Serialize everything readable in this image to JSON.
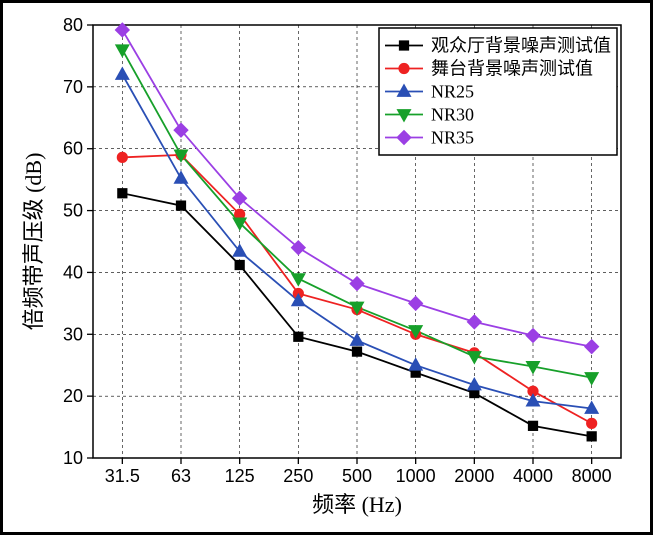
{
  "chart": {
    "type": "line",
    "background_color": "#ffffff",
    "outer_border_color": "#000000",
    "outer_border_width": 3,
    "plot": {
      "border_color": "#000000",
      "border_width": 1.5,
      "grid_color": "#000000",
      "grid_dash": "3,3",
      "grid_width": 0.6
    },
    "xlabel": "频率 (Hz)",
    "ylabel": "倍频带声压级 (dB)",
    "label_fontsize": 22,
    "tick_fontsize": 18,
    "x_categories": [
      "31.5",
      "63",
      "125",
      "250",
      "500",
      "1000",
      "2000",
      "4000",
      "8000"
    ],
    "y_min": 10,
    "y_max": 80,
    "y_tick_step": 10,
    "legend": {
      "bg": "#ffffff",
      "border": "#000000",
      "fontsize": 18
    },
    "series": [
      {
        "name": "观众厅背景噪声测试值",
        "color": "#000000",
        "marker": "square",
        "marker_fill": "#000000",
        "marker_size": 6,
        "line_width": 1.8,
        "values": [
          52.8,
          50.8,
          41.2,
          29.6,
          27.2,
          23.8,
          20.5,
          15.2,
          13.5
        ]
      },
      {
        "name": "舞台背景噪声测试值",
        "color": "#ee2222",
        "marker": "circle",
        "marker_fill": "#ee2222",
        "marker_size": 6,
        "line_width": 1.8,
        "values": [
          58.6,
          59.0,
          49.4,
          36.6,
          34.0,
          30.0,
          27.0,
          20.8,
          15.6
        ]
      },
      {
        "name": "NR25",
        "color": "#2a4fb5",
        "marker": "triangle-up",
        "marker_fill": "#2a4fb5",
        "marker_size": 7,
        "line_width": 1.8,
        "values": [
          72.0,
          55.2,
          43.4,
          35.4,
          29.0,
          25.0,
          21.8,
          19.2,
          18.0
        ]
      },
      {
        "name": "NR30",
        "color": "#17a02a",
        "marker": "triangle-down",
        "marker_fill": "#17a02a",
        "marker_size": 7,
        "line_width": 1.8,
        "values": [
          76.0,
          59.0,
          48.0,
          39.0,
          34.4,
          30.6,
          26.4,
          24.8,
          23.0
        ]
      },
      {
        "name": "NR35",
        "color": "#9b3fe4",
        "marker": "diamond",
        "marker_fill": "#9b3fe4",
        "marker_size": 7,
        "line_width": 1.8,
        "values": [
          79.2,
          63.0,
          52.0,
          44.0,
          38.2,
          35.0,
          32.0,
          29.8,
          28.0
        ]
      }
    ]
  }
}
